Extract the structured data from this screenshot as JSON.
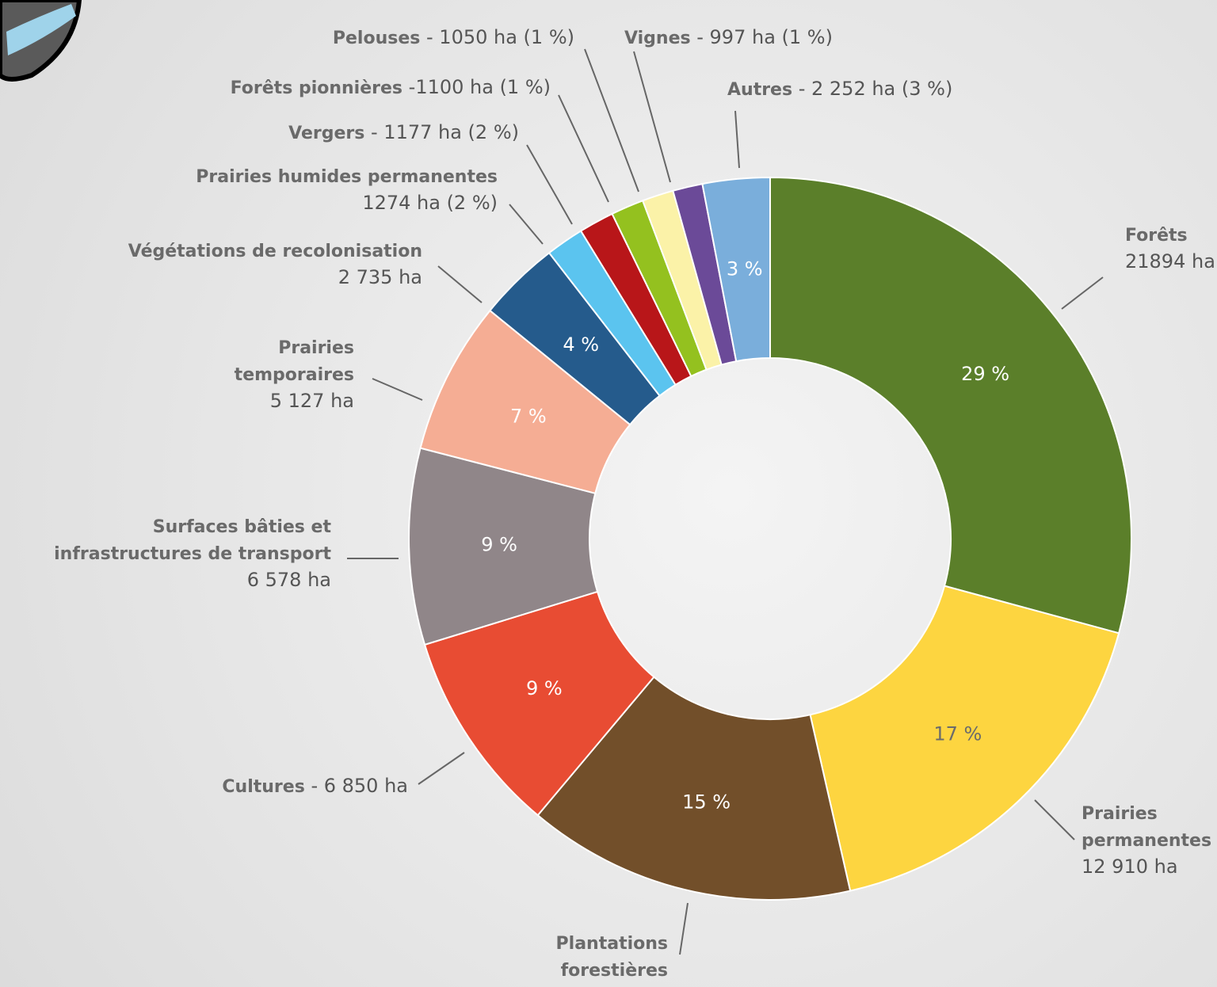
{
  "chart_data": {
    "type": "donut",
    "categories": [
      [
        "Forêts"
      ],
      [
        "Prairies",
        "permanentes"
      ],
      [
        "Plantations",
        "forestières"
      ],
      [
        "Cultures"
      ],
      [
        "Surfaces bâties et",
        "infrastructures de transport"
      ],
      [
        "Prairies",
        "temporaires"
      ],
      [
        "Végétations de recolonisation"
      ],
      [
        "Prairies humides permanentes"
      ],
      [
        "Vergers"
      ],
      [
        "Forêts pionnières"
      ],
      [
        "Pelouses"
      ],
      [
        "Vignes"
      ],
      [
        "Autres"
      ]
    ],
    "values": [
      21894,
      12910,
      11000,
      6850,
      6578,
      5127,
      2735,
      1274,
      1177,
      1100,
      1050,
      997,
      2252
    ],
    "value_labels": [
      "21894 ha",
      "12 910 ha",
      null,
      "- 6 850 ha",
      "6 578 ha",
      "5 127 ha",
      "2 735 ha",
      "1274 ha (2 %)",
      "- 1177 ha (2 %)",
      "-1100 ha (1 %)",
      "- 1050 ha (1 %)",
      "- 997 ha (1 %)",
      "- 2 252 ha (3 %)"
    ],
    "slice_labels": [
      "29 %",
      "17 %",
      "15 %",
      "9 %",
      "9 %",
      "7 %",
      "4 %",
      null,
      null,
      null,
      null,
      null,
      "3 %"
    ],
    "colors": [
      "#5b7f2a",
      "#fdd540",
      "#724f2a",
      "#e84c33",
      "#908689",
      "#f5ad94",
      "#255b8c",
      "#5bc4ef",
      "#b81619",
      "#94c11f",
      "#fbf2a8",
      "#6b4a98",
      "#7aaedb"
    ]
  }
}
